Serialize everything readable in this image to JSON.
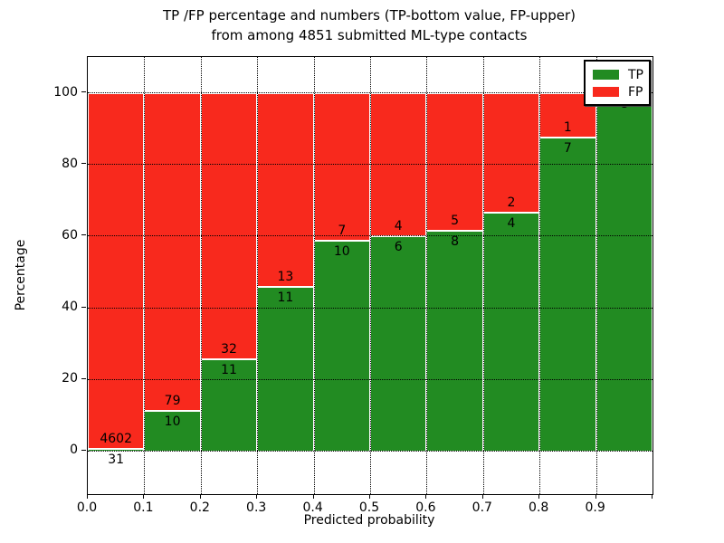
{
  "figure": {
    "title_line1": "TP /FP percentage and numbers (TP-bottom value, FP-upper)",
    "title_line2": "from among 4851 submitted ML-type contacts",
    "xlabel": "Predicted probability",
    "ylabel": "Percentage"
  },
  "legend": {
    "position": "upper right",
    "items": [
      {
        "label": "TP",
        "color": "#228b22"
      },
      {
        "label": "FP",
        "color": "#f8291d"
      }
    ]
  },
  "chart_data": {
    "type": "bar",
    "stacked": true,
    "normalized_to_percent": true,
    "title": "TP /FP percentage and numbers (TP-bottom value, FP-upper) from among 4851 submitted ML-type contacts",
    "xlabel": "Predicted probability",
    "ylabel": "Percentage",
    "total_contacts": 4851,
    "categories": [
      "0.0-0.1",
      "0.1-0.2",
      "0.2-0.3",
      "0.3-0.4",
      "0.4-0.5",
      "0.5-0.6",
      "0.6-0.7",
      "0.7-0.8",
      "0.8-0.9",
      "0.9-1.0"
    ],
    "bin_start": [
      0.0,
      0.1,
      0.2,
      0.3,
      0.4,
      0.5,
      0.6,
      0.7,
      0.8,
      0.9
    ],
    "bin_width": 0.1,
    "series": [
      {
        "name": "TP",
        "color": "#228b22",
        "counts": [
          31,
          10,
          11,
          11,
          10,
          6,
          8,
          4,
          7,
          8
        ]
      },
      {
        "name": "FP",
        "color": "#f8291d",
        "counts": [
          4602,
          79,
          32,
          13,
          7,
          4,
          5,
          2,
          1,
          0
        ]
      }
    ],
    "tp_percent": [
      0.67,
      11.24,
      25.58,
      45.83,
      58.82,
      60.0,
      61.54,
      66.67,
      87.5,
      100.0
    ],
    "annotations": {
      "tp_labels": [
        "31",
        "10",
        "11",
        "11",
        "10",
        "6",
        "8",
        "4",
        "7",
        "8"
      ],
      "fp_labels": [
        "4602",
        "79",
        "32",
        "13",
        "7",
        "4",
        "5",
        "2",
        "1",
        null
      ]
    },
    "xticks": [
      "0.0",
      "0.1",
      "0.2",
      "0.3",
      "0.4",
      "0.5",
      "0.6",
      "0.7",
      "0.8",
      "0.9"
    ],
    "yticks": [
      "0",
      "20",
      "40",
      "60",
      "80",
      "100"
    ],
    "xlim": [
      0.0,
      1.0
    ],
    "ylim": [
      -12,
      110
    ],
    "grid": true,
    "grid_style": "dotted",
    "bar_edge_color": "#ffffff",
    "legend_position": "upper right"
  }
}
